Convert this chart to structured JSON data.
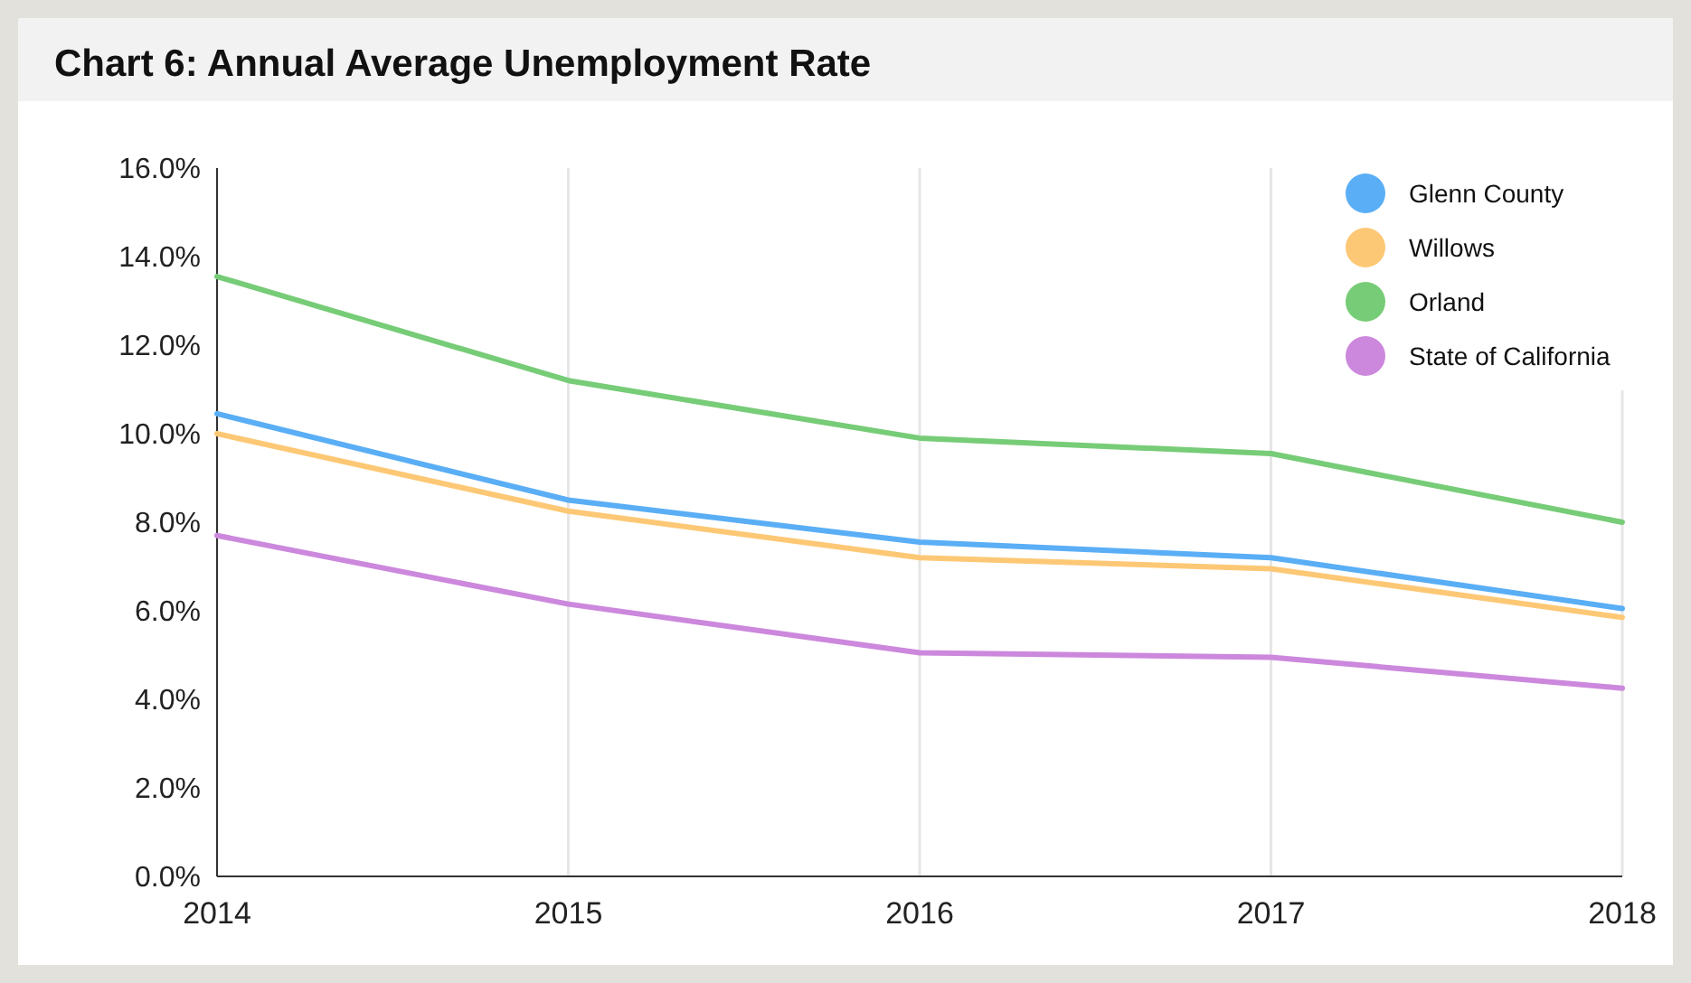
{
  "chart_data": {
    "type": "line",
    "title": "Chart 6: Annual Average Unemployment Rate",
    "categories": [
      "2014",
      "2015",
      "2016",
      "2017",
      "2018"
    ],
    "series": [
      {
        "name": "Glenn County",
        "color": "#5aaef5",
        "values": [
          10.45,
          8.5,
          7.55,
          7.2,
          6.05
        ]
      },
      {
        "name": "Willows",
        "color": "#fdc875",
        "values": [
          10.0,
          8.25,
          7.2,
          6.95,
          5.85
        ]
      },
      {
        "name": "Orland",
        "color": "#77cc77",
        "values": [
          13.55,
          11.2,
          9.9,
          9.55,
          8.0
        ]
      },
      {
        "name": "State of California",
        "color": "#cc88dd",
        "values": [
          7.7,
          6.15,
          5.05,
          4.95,
          4.25
        ]
      }
    ],
    "ylim": [
      0,
      16
    ],
    "yticks": [
      {
        "value": 0,
        "label": "0.0%"
      },
      {
        "value": 2,
        "label": "2.0%"
      },
      {
        "value": 4,
        "label": "4.0%"
      },
      {
        "value": 6,
        "label": "6.0%"
      },
      {
        "value": 8,
        "label": "8.0%"
      },
      {
        "value": 10,
        "label": "10.0%"
      },
      {
        "value": 12,
        "label": "12.0%"
      },
      {
        "value": 14,
        "label": "14.0%"
      },
      {
        "value": 16,
        "label": "16.0%"
      }
    ],
    "grid": "x",
    "legend": "top right",
    "marker": "none",
    "line_style": "solid"
  }
}
